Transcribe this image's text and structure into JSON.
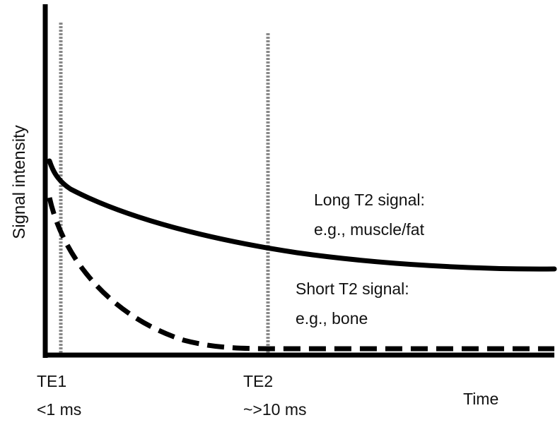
{
  "axes": {
    "y_label": "Signal intensity",
    "x_label": "Time"
  },
  "markers": {
    "te1": {
      "name": "TE1",
      "value": "<1 ms"
    },
    "te2": {
      "name": "TE2",
      "value": "~>10 ms"
    }
  },
  "curves": {
    "long": {
      "title": "Long T2 signal:",
      "example": "e.g., muscle/fat",
      "line_style": "solid"
    },
    "short": {
      "title": "Short T2 signal:",
      "example": "e.g., bone",
      "line_style": "dashed"
    }
  },
  "colors": {
    "curve": "#000000",
    "marker_line": "#888888",
    "text": "#111111"
  }
}
